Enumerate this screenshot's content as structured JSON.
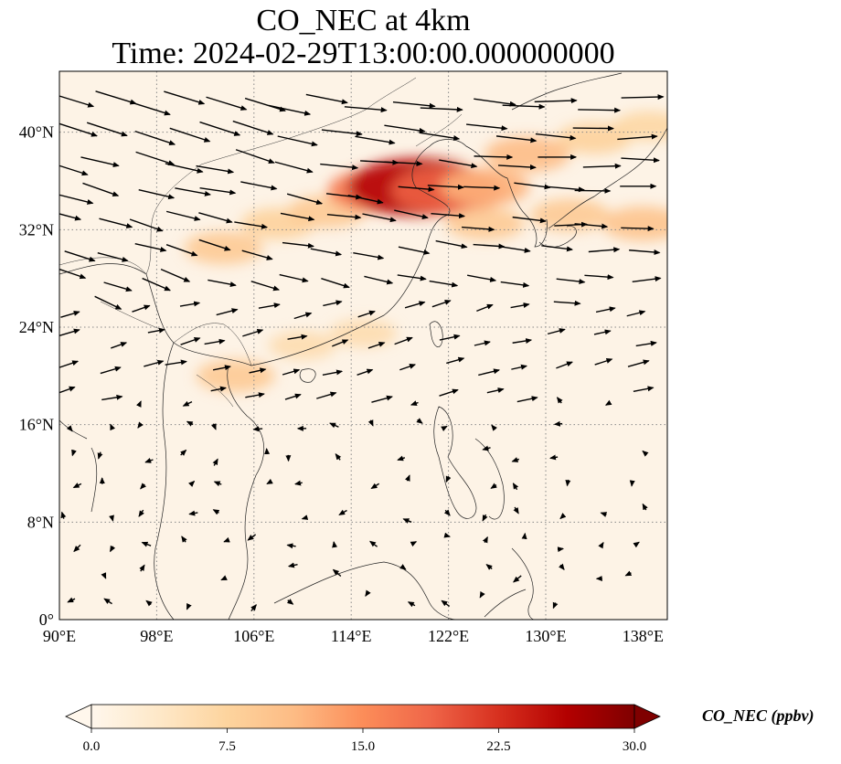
{
  "title": {
    "line1": "CO_NEC at 4km",
    "line2": "Time: 2024-02-29T13:00:00.000000000"
  },
  "axes": {
    "lat_ticks": [
      "0°",
      "8°N",
      "16°N",
      "24°N",
      "32°N",
      "40°N"
    ],
    "lon_ticks": [
      "90°E",
      "98°E",
      "106°E",
      "114°E",
      "122°E",
      "130°E",
      "138°E"
    ],
    "lat_range": [
      0,
      45
    ],
    "lon_range": [
      90,
      140
    ],
    "gridlines": "dotted"
  },
  "colorbar": {
    "label": "CO_NEC (ppbv)",
    "ticks": [
      "0.0",
      "7.5",
      "15.0",
      "22.5",
      "30.0"
    ],
    "range": [
      0,
      30
    ],
    "extend": "both",
    "colormap": "OrRd",
    "colors": [
      "#fff7ec",
      "#fee8c8",
      "#fdd49e",
      "#fdbb84",
      "#fc8d59",
      "#ef6548",
      "#d7301f",
      "#b30000",
      "#7f0000"
    ]
  },
  "chart_data": {
    "type": "heatmap",
    "variable": "CO_NEC",
    "units": "ppbv",
    "overlay": "wind vectors",
    "high_concentration_band": [
      {
        "lon": 103.5,
        "lat": 30.5,
        "value": 9
      },
      {
        "lon": 108,
        "lat": 32.5,
        "value": 8
      },
      {
        "lon": 112,
        "lat": 33.5,
        "value": 9
      },
      {
        "lon": 116.5,
        "lat": 35.2,
        "value": 17
      },
      {
        "lon": 119.5,
        "lat": 35.5,
        "value": 26
      },
      {
        "lon": 122,
        "lat": 35.2,
        "value": 19
      },
      {
        "lon": 125,
        "lat": 35.5,
        "value": 12
      },
      {
        "lon": 128.5,
        "lat": 38.2,
        "value": 11
      },
      {
        "lon": 134,
        "lat": 39.5,
        "value": 8
      },
      {
        "lon": 138.5,
        "lat": 40.5,
        "value": 7
      },
      {
        "lon": 125,
        "lat": 32.5,
        "value": 9
      },
      {
        "lon": 132,
        "lat": 33.2,
        "value": 9
      },
      {
        "lon": 138,
        "lat": 32.5,
        "value": 10
      },
      {
        "lon": 104.5,
        "lat": 20,
        "value": 9
      },
      {
        "lon": 110,
        "lat": 22.5,
        "value": 6
      },
      {
        "lon": 115,
        "lat": 23.5,
        "value": 6
      }
    ]
  }
}
